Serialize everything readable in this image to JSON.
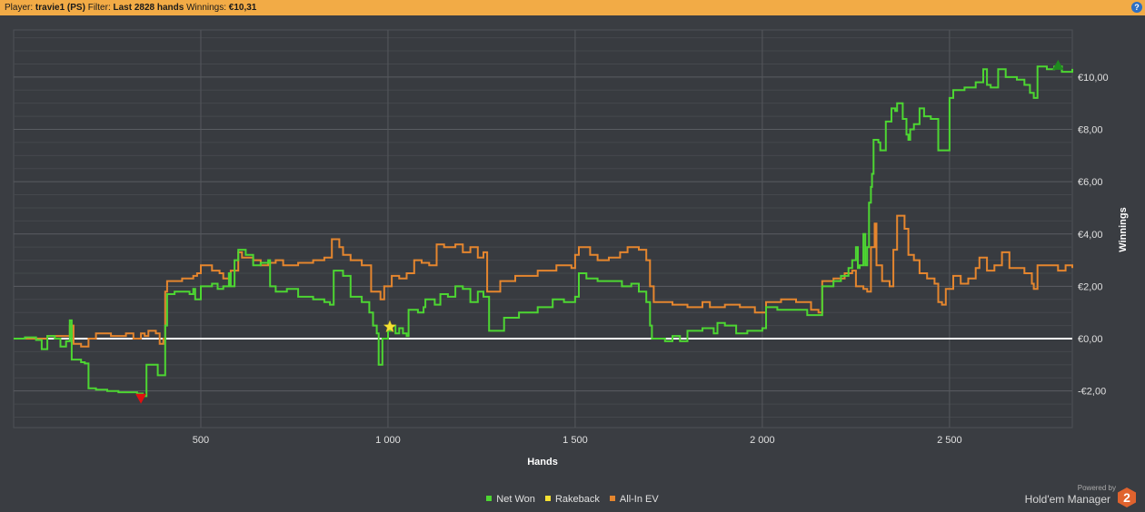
{
  "header": {
    "player_label": "Player:",
    "player_value": "travie1 (PS)",
    "filter_label": "Filter:",
    "filter_value": "Last 2828 hands",
    "winnings_label": "Winnings:",
    "winnings_value": "€10,31",
    "help_glyph": "?"
  },
  "legend": {
    "net_won": "Net Won",
    "rakeback": "Rakeback",
    "allin_ev": "All-In EV"
  },
  "branding": {
    "powered_by": "Powered by",
    "product": "Hold'em Manager",
    "logo_text": "2"
  },
  "colors": {
    "net_won": "#4dd632",
    "rakeback": "#f5e132",
    "allin_ev": "#e5862e",
    "zero_line": "#ffffff",
    "max_marker": "#1f8a1f",
    "min_marker": "#e01010",
    "star": "#f5e132"
  },
  "chart_data": {
    "type": "line",
    "xlabel": "Hands",
    "ylabel": "Winnings",
    "xlim": [
      0,
      2828
    ],
    "ylim": [
      -3.4,
      11.8
    ],
    "x_ticks": [
      500,
      1000,
      1500,
      2000,
      2500
    ],
    "x_tick_labels": [
      "500",
      "1 000",
      "1 500",
      "2 000",
      "2 500"
    ],
    "y_ticks": [
      -2,
      0,
      2,
      4,
      6,
      8,
      10
    ],
    "y_tick_labels": [
      "-€2,00",
      "€0,00",
      "€2,00",
      "€4,00",
      "€6,00",
      "€8,00",
      "€10,00"
    ],
    "y_axis_side": "right",
    "grid": true,
    "legend_position": "bottom-center",
    "series": [
      {
        "name": "Net Won",
        "color": "#4dd632",
        "points": [
          [
            0,
            0.0
          ],
          [
            30,
            0.05
          ],
          [
            60,
            -0.05
          ],
          [
            75,
            -0.4
          ],
          [
            90,
            0.1
          ],
          [
            110,
            0.0
          ],
          [
            125,
            -0.3
          ],
          [
            140,
            -0.1
          ],
          [
            150,
            0.7
          ],
          [
            155,
            -0.8
          ],
          [
            170,
            -0.8
          ],
          [
            180,
            -0.9
          ],
          [
            190,
            -0.95
          ],
          [
            200,
            -1.9
          ],
          [
            220,
            -1.95
          ],
          [
            250,
            -2.0
          ],
          [
            280,
            -2.05
          ],
          [
            300,
            -2.05
          ],
          [
            330,
            -2.1
          ],
          [
            345,
            -2.2
          ],
          [
            350,
            -2.2
          ],
          [
            355,
            -1.0
          ],
          [
            380,
            -1.0
          ],
          [
            385,
            -1.4
          ],
          [
            390,
            -1.4
          ],
          [
            400,
            -1.4
          ],
          [
            405,
            0.5
          ],
          [
            410,
            1.7
          ],
          [
            430,
            1.8
          ],
          [
            470,
            1.7
          ],
          [
            480,
            1.9
          ],
          [
            485,
            1.5
          ],
          [
            500,
            2.0
          ],
          [
            530,
            2.1
          ],
          [
            545,
            1.9
          ],
          [
            560,
            2.0
          ],
          [
            575,
            2.5
          ],
          [
            580,
            2.0
          ],
          [
            590,
            3.0
          ],
          [
            600,
            3.4
          ],
          [
            620,
            3.2
          ],
          [
            640,
            2.8
          ],
          [
            660,
            2.9
          ],
          [
            680,
            3.0
          ],
          [
            685,
            2.0
          ],
          [
            700,
            1.8
          ],
          [
            730,
            1.9
          ],
          [
            760,
            1.6
          ],
          [
            800,
            1.5
          ],
          [
            830,
            1.4
          ],
          [
            845,
            1.3
          ],
          [
            855,
            2.6
          ],
          [
            880,
            2.4
          ],
          [
            900,
            1.6
          ],
          [
            930,
            1.4
          ],
          [
            950,
            1.0
          ],
          [
            960,
            0.5
          ],
          [
            970,
            0.2
          ],
          [
            975,
            -1.0
          ],
          [
            985,
            0.0
          ],
          [
            1000,
            0.3
          ],
          [
            1010,
            0.5
          ],
          [
            1020,
            0.2
          ],
          [
            1030,
            0.4
          ],
          [
            1040,
            0.2
          ],
          [
            1050,
            0.1
          ],
          [
            1055,
            1.1
          ],
          [
            1080,
            1.0
          ],
          [
            1095,
            1.2
          ],
          [
            1100,
            1.5
          ],
          [
            1125,
            1.3
          ],
          [
            1140,
            1.7
          ],
          [
            1160,
            1.6
          ],
          [
            1180,
            2.0
          ],
          [
            1200,
            1.9
          ],
          [
            1220,
            1.4
          ],
          [
            1240,
            1.8
          ],
          [
            1255,
            1.6
          ],
          [
            1270,
            0.3
          ],
          [
            1290,
            0.3
          ],
          [
            1310,
            0.8
          ],
          [
            1350,
            1.0
          ],
          [
            1400,
            1.2
          ],
          [
            1440,
            1.5
          ],
          [
            1470,
            1.4
          ],
          [
            1500,
            1.6
          ],
          [
            1510,
            2.5
          ],
          [
            1530,
            2.3
          ],
          [
            1560,
            2.2
          ],
          [
            1600,
            2.2
          ],
          [
            1625,
            2.0
          ],
          [
            1650,
            2.1
          ],
          [
            1670,
            1.8
          ],
          [
            1690,
            1.4
          ],
          [
            1700,
            0.5
          ],
          [
            1705,
            0.0
          ],
          [
            1740,
            -0.1
          ],
          [
            1760,
            0.1
          ],
          [
            1780,
            -0.1
          ],
          [
            1800,
            0.3
          ],
          [
            1840,
            0.4
          ],
          [
            1870,
            0.2
          ],
          [
            1880,
            0.6
          ],
          [
            1900,
            0.5
          ],
          [
            1930,
            0.2
          ],
          [
            1960,
            0.3
          ],
          [
            1980,
            0.3
          ],
          [
            2000,
            0.4
          ],
          [
            2010,
            1.2
          ],
          [
            2040,
            1.1
          ],
          [
            2090,
            1.1
          ],
          [
            2120,
            0.9
          ],
          [
            2140,
            0.9
          ],
          [
            2150,
            0.9
          ],
          [
            2160,
            2.0
          ],
          [
            2190,
            2.2
          ],
          [
            2210,
            2.4
          ],
          [
            2230,
            2.7
          ],
          [
            2240,
            3.0
          ],
          [
            2250,
            3.5
          ],
          [
            2255,
            2.7
          ],
          [
            2260,
            2.8
          ],
          [
            2270,
            4.0
          ],
          [
            2275,
            2.8
          ],
          [
            2280,
            3.5
          ],
          [
            2285,
            5.2
          ],
          [
            2290,
            5.8
          ],
          [
            2293,
            6.3
          ],
          [
            2297,
            7.6
          ],
          [
            2310,
            7.5
          ],
          [
            2315,
            7.2
          ],
          [
            2330,
            8.3
          ],
          [
            2345,
            8.8
          ],
          [
            2355,
            8.7
          ],
          [
            2360,
            9.0
          ],
          [
            2375,
            8.4
          ],
          [
            2385,
            7.8
          ],
          [
            2390,
            7.6
          ],
          [
            2395,
            8.0
          ],
          [
            2405,
            8.2
          ],
          [
            2420,
            8.8
          ],
          [
            2432,
            8.5
          ],
          [
            2450,
            8.4
          ],
          [
            2470,
            7.2
          ],
          [
            2485,
            7.2
          ],
          [
            2500,
            9.2
          ],
          [
            2510,
            9.5
          ],
          [
            2540,
            9.6
          ],
          [
            2570,
            9.8
          ],
          [
            2590,
            10.3
          ],
          [
            2600,
            9.7
          ],
          [
            2610,
            9.6
          ],
          [
            2630,
            10.3
          ],
          [
            2650,
            10.0
          ],
          [
            2680,
            9.9
          ],
          [
            2700,
            9.7
          ],
          [
            2715,
            9.4
          ],
          [
            2725,
            9.2
          ],
          [
            2735,
            10.4
          ],
          [
            2760,
            10.3
          ],
          [
            2780,
            10.4
          ],
          [
            2800,
            10.2
          ],
          [
            2828,
            10.31
          ]
        ]
      },
      {
        "name": "Rakeback",
        "color": "#f5e132",
        "points": [
          [
            0,
            0.0
          ],
          [
            2828,
            0.0
          ]
        ]
      },
      {
        "name": "All-In EV",
        "color": "#e5862e",
        "points": [
          [
            0,
            0.0
          ],
          [
            60,
            0.0
          ],
          [
            90,
            0.1
          ],
          [
            135,
            0.1
          ],
          [
            150,
            0.5
          ],
          [
            160,
            -0.2
          ],
          [
            180,
            -0.3
          ],
          [
            200,
            0.0
          ],
          [
            220,
            0.2
          ],
          [
            260,
            0.1
          ],
          [
            300,
            0.2
          ],
          [
            320,
            0.0
          ],
          [
            340,
            0.2
          ],
          [
            350,
            0.1
          ],
          [
            360,
            0.3
          ],
          [
            380,
            0.2
          ],
          [
            390,
            -0.2
          ],
          [
            400,
            0.0
          ],
          [
            405,
            1.8
          ],
          [
            410,
            2.2
          ],
          [
            450,
            2.3
          ],
          [
            480,
            2.4
          ],
          [
            490,
            2.5
          ],
          [
            500,
            2.8
          ],
          [
            530,
            2.6
          ],
          [
            550,
            2.5
          ],
          [
            560,
            2.3
          ],
          [
            575,
            2.5
          ],
          [
            580,
            2.6
          ],
          [
            600,
            3.3
          ],
          [
            610,
            3.1
          ],
          [
            640,
            3.0
          ],
          [
            660,
            2.8
          ],
          [
            680,
            2.9
          ],
          [
            700,
            3.0
          ],
          [
            720,
            2.8
          ],
          [
            760,
            2.9
          ],
          [
            800,
            3.0
          ],
          [
            830,
            3.1
          ],
          [
            850,
            3.8
          ],
          [
            870,
            3.5
          ],
          [
            880,
            3.2
          ],
          [
            900,
            3.0
          ],
          [
            930,
            2.8
          ],
          [
            955,
            1.8
          ],
          [
            980,
            1.5
          ],
          [
            990,
            2.0
          ],
          [
            1010,
            2.4
          ],
          [
            1030,
            2.3
          ],
          [
            1050,
            2.5
          ],
          [
            1070,
            3.0
          ],
          [
            1090,
            2.9
          ],
          [
            1110,
            2.8
          ],
          [
            1130,
            3.6
          ],
          [
            1150,
            3.5
          ],
          [
            1180,
            3.6
          ],
          [
            1200,
            3.3
          ],
          [
            1220,
            3.5
          ],
          [
            1240,
            3.1
          ],
          [
            1255,
            3.3
          ],
          [
            1265,
            1.8
          ],
          [
            1280,
            1.8
          ],
          [
            1300,
            2.2
          ],
          [
            1340,
            2.4
          ],
          [
            1400,
            2.6
          ],
          [
            1450,
            2.8
          ],
          [
            1490,
            2.7
          ],
          [
            1500,
            3.2
          ],
          [
            1510,
            3.5
          ],
          [
            1540,
            3.2
          ],
          [
            1560,
            3.0
          ],
          [
            1590,
            3.1
          ],
          [
            1620,
            3.3
          ],
          [
            1640,
            3.5
          ],
          [
            1670,
            3.4
          ],
          [
            1690,
            3.0
          ],
          [
            1700,
            2.0
          ],
          [
            1710,
            1.4
          ],
          [
            1760,
            1.3
          ],
          [
            1800,
            1.2
          ],
          [
            1840,
            1.4
          ],
          [
            1860,
            1.2
          ],
          [
            1900,
            1.3
          ],
          [
            1940,
            1.2
          ],
          [
            1980,
            1.0
          ],
          [
            2010,
            1.4
          ],
          [
            2050,
            1.5
          ],
          [
            2090,
            1.4
          ],
          [
            2130,
            1.1
          ],
          [
            2150,
            1.0
          ],
          [
            2160,
            2.2
          ],
          [
            2190,
            2.3
          ],
          [
            2220,
            2.5
          ],
          [
            2240,
            2.6
          ],
          [
            2250,
            2.0
          ],
          [
            2270,
            1.9
          ],
          [
            2280,
            1.8
          ],
          [
            2290,
            3.5
          ],
          [
            2300,
            4.4
          ],
          [
            2305,
            2.8
          ],
          [
            2320,
            2.2
          ],
          [
            2340,
            2.0
          ],
          [
            2350,
            3.4
          ],
          [
            2360,
            4.7
          ],
          [
            2380,
            4.2
          ],
          [
            2390,
            3.2
          ],
          [
            2405,
            3.0
          ],
          [
            2420,
            2.5
          ],
          [
            2440,
            2.3
          ],
          [
            2460,
            2.1
          ],
          [
            2470,
            1.4
          ],
          [
            2480,
            1.3
          ],
          [
            2490,
            1.9
          ],
          [
            2510,
            2.4
          ],
          [
            2530,
            2.1
          ],
          [
            2550,
            2.3
          ],
          [
            2570,
            2.7
          ],
          [
            2580,
            3.1
          ],
          [
            2600,
            2.6
          ],
          [
            2620,
            2.8
          ],
          [
            2640,
            3.3
          ],
          [
            2660,
            2.7
          ],
          [
            2700,
            2.5
          ],
          [
            2720,
            2.1
          ],
          [
            2725,
            1.9
          ],
          [
            2735,
            2.8
          ],
          [
            2760,
            2.8
          ],
          [
            2790,
            2.6
          ],
          [
            2810,
            2.8
          ],
          [
            2828,
            2.7
          ]
        ]
      }
    ],
    "markers": [
      {
        "type": "max",
        "shape": "triangle-up",
        "x": 2790,
        "y": 10.45,
        "color": "#1f8a1f"
      },
      {
        "type": "min",
        "shape": "triangle-down",
        "x": 340,
        "y": -2.28,
        "color": "#e01010"
      },
      {
        "type": "star",
        "shape": "star",
        "x": 1005,
        "y": 0.45,
        "color": "#f5e132"
      }
    ]
  }
}
